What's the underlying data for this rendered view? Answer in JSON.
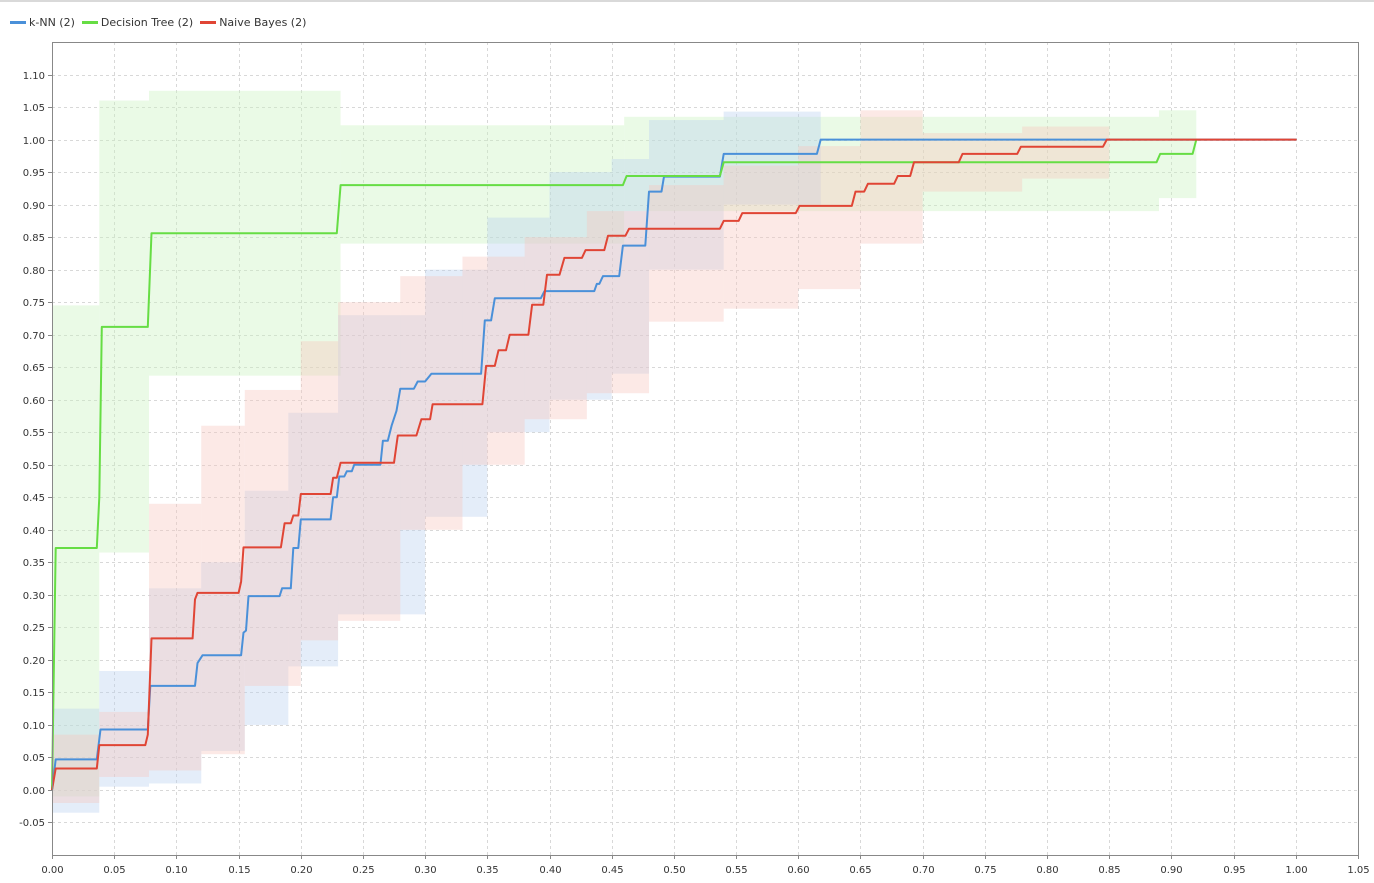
{
  "chart_data": {
    "type": "line",
    "title": "",
    "xlabel": "",
    "ylabel": "",
    "xlim": [
      0,
      1.05
    ],
    "ylim": [
      -0.1,
      1.15
    ],
    "grid": true,
    "legend_position": "top-left",
    "x_ticks": [
      "0.00",
      "0.05",
      "0.10",
      "0.15",
      "0.20",
      "0.25",
      "0.30",
      "0.35",
      "0.40",
      "0.45",
      "0.50",
      "0.55",
      "0.60",
      "0.65",
      "0.70",
      "0.75",
      "0.80",
      "0.85",
      "0.90",
      "0.95",
      "1.00",
      "1.05"
    ],
    "y_ticks": [
      "-0.05",
      "0.00",
      "0.05",
      "0.10",
      "0.15",
      "0.20",
      "0.25",
      "0.30",
      "0.35",
      "0.40",
      "0.45",
      "0.50",
      "0.55",
      "0.60",
      "0.65",
      "0.70",
      "0.75",
      "0.80",
      "0.85",
      "0.90",
      "0.95",
      "1.00",
      "1.05",
      "1.10"
    ],
    "series": [
      {
        "name": "k-NN (2)",
        "color": "#4a90d9",
        "band_color": "#b8d0f0",
        "x": [
          0,
          0.003,
          0.036,
          0.039,
          0.077,
          0.079,
          0.115,
          0.117,
          0.121,
          0.152,
          0.154,
          0.156,
          0.158,
          0.183,
          0.185,
          0.192,
          0.194,
          0.198,
          0.2,
          0.224,
          0.226,
          0.229,
          0.231,
          0.235,
          0.237,
          0.241,
          0.243,
          0.252,
          0.255,
          0.264,
          0.266,
          0.27,
          0.273,
          0.277,
          0.28,
          0.291,
          0.294,
          0.3,
          0.305,
          0.308,
          0.311,
          0.333,
          0.336,
          0.345,
          0.348,
          0.353,
          0.356,
          0.393,
          0.396,
          0.425,
          0.436,
          0.438,
          0.44,
          0.443,
          0.456,
          0.459,
          0.477,
          0.48,
          0.49,
          0.492,
          0.498,
          0.5,
          0.537,
          0.54,
          0.615,
          0.618,
          1.0
        ],
        "y": [
          0,
          0.047,
          0.047,
          0.093,
          0.093,
          0.16,
          0.16,
          0.195,
          0.207,
          0.207,
          0.242,
          0.245,
          0.298,
          0.298,
          0.31,
          0.31,
          0.372,
          0.372,
          0.416,
          0.416,
          0.45,
          0.45,
          0.482,
          0.482,
          0.49,
          0.49,
          0.5,
          0.5,
          0.5,
          0.5,
          0.537,
          0.537,
          0.56,
          0.583,
          0.617,
          0.617,
          0.628,
          0.628,
          0.64,
          0.64,
          0.64,
          0.64,
          0.64,
          0.64,
          0.722,
          0.722,
          0.756,
          0.756,
          0.767,
          0.767,
          0.767,
          0.778,
          0.778,
          0.79,
          0.79,
          0.837,
          0.837,
          0.92,
          0.92,
          0.943,
          0.943,
          0.943,
          0.943,
          0.978,
          0.978,
          1.0,
          1.0
        ]
      },
      {
        "name": "Decision Tree (2)",
        "color": "#66dd44",
        "band_color": "#c9f2bd",
        "x": [
          0,
          0.003,
          0.036,
          0.038,
          0.04,
          0.077,
          0.08,
          0.229,
          0.232,
          0.459,
          0.462,
          0.537,
          0.54,
          0.888,
          0.891,
          0.917,
          0.92
        ],
        "y": [
          0,
          0.372,
          0.372,
          0.45,
          0.712,
          0.712,
          0.856,
          0.856,
          0.93,
          0.93,
          0.944,
          0.944,
          0.965,
          0.965,
          0.978,
          0.978,
          1.0
        ]
      },
      {
        "name": "Naive Bayes (2)",
        "color": "#e04535",
        "band_color": "#f6c4bc",
        "x": [
          0,
          0.003,
          0.036,
          0.038,
          0.075,
          0.077,
          0.08,
          0.113,
          0.115,
          0.117,
          0.15,
          0.152,
          0.154,
          0.184,
          0.187,
          0.192,
          0.194,
          0.198,
          0.2,
          0.224,
          0.226,
          0.229,
          0.232,
          0.259,
          0.262,
          0.275,
          0.278,
          0.293,
          0.297,
          0.304,
          0.306,
          0.346,
          0.349,
          0.356,
          0.359,
          0.365,
          0.368,
          0.383,
          0.386,
          0.395,
          0.398,
          0.408,
          0.412,
          0.426,
          0.429,
          0.444,
          0.447,
          0.461,
          0.464,
          0.481,
          0.484,
          0.537,
          0.54,
          0.552,
          0.555,
          0.598,
          0.601,
          0.643,
          0.646,
          0.653,
          0.656,
          0.677,
          0.68,
          0.69,
          0.693,
          0.729,
          0.732,
          0.776,
          0.779,
          0.845,
          0.848,
          1.0
        ],
        "y": [
          0,
          0.033,
          0.033,
          0.069,
          0.069,
          0.085,
          0.233,
          0.233,
          0.293,
          0.303,
          0.303,
          0.32,
          0.373,
          0.373,
          0.41,
          0.41,
          0.422,
          0.422,
          0.455,
          0.455,
          0.48,
          0.48,
          0.503,
          0.503,
          0.503,
          0.503,
          0.545,
          0.545,
          0.57,
          0.57,
          0.593,
          0.593,
          0.652,
          0.652,
          0.676,
          0.676,
          0.7,
          0.7,
          0.746,
          0.746,
          0.792,
          0.792,
          0.818,
          0.818,
          0.83,
          0.83,
          0.852,
          0.852,
          0.863,
          0.863,
          0.863,
          0.863,
          0.875,
          0.875,
          0.887,
          0.887,
          0.898,
          0.898,
          0.92,
          0.92,
          0.932,
          0.932,
          0.944,
          0.944,
          0.965,
          0.965,
          0.978,
          0.978,
          0.989,
          0.989,
          1.0,
          1.0
        ]
      }
    ],
    "bands": [
      {
        "series": "Decision Tree (2)",
        "steps": [
          {
            "x0": 0.0,
            "x1": 0.038,
            "lo": -0.01,
            "hi": 0.745
          },
          {
            "x0": 0.038,
            "x1": 0.078,
            "lo": 0.365,
            "hi": 1.06
          },
          {
            "x0": 0.078,
            "x1": 0.232,
            "lo": 0.637,
            "hi": 1.075
          },
          {
            "x0": 0.232,
            "x1": 0.46,
            "lo": 0.84,
            "hi": 1.022
          },
          {
            "x0": 0.46,
            "x1": 0.89,
            "lo": 0.89,
            "hi": 1.035
          },
          {
            "x0": 0.89,
            "x1": 0.92,
            "lo": 0.91,
            "hi": 1.045
          }
        ]
      },
      {
        "series": "k-NN (2)",
        "steps": [
          {
            "x0": 0.0,
            "x1": 0.038,
            "lo": -0.035,
            "hi": 0.125
          },
          {
            "x0": 0.038,
            "x1": 0.078,
            "lo": 0.005,
            "hi": 0.183
          },
          {
            "x0": 0.078,
            "x1": 0.12,
            "lo": 0.01,
            "hi": 0.31
          },
          {
            "x0": 0.12,
            "x1": 0.155,
            "lo": 0.06,
            "hi": 0.35
          },
          {
            "x0": 0.155,
            "x1": 0.19,
            "lo": 0.1,
            "hi": 0.46
          },
          {
            "x0": 0.19,
            "x1": 0.23,
            "lo": 0.19,
            "hi": 0.58
          },
          {
            "x0": 0.23,
            "x1": 0.3,
            "lo": 0.27,
            "hi": 0.73
          },
          {
            "x0": 0.3,
            "x1": 0.35,
            "lo": 0.42,
            "hi": 0.8
          },
          {
            "x0": 0.35,
            "x1": 0.4,
            "lo": 0.55,
            "hi": 0.88
          },
          {
            "x0": 0.4,
            "x1": 0.45,
            "lo": 0.6,
            "hi": 0.95
          },
          {
            "x0": 0.45,
            "x1": 0.48,
            "lo": 0.64,
            "hi": 0.97
          },
          {
            "x0": 0.48,
            "x1": 0.54,
            "lo": 0.8,
            "hi": 1.03
          },
          {
            "x0": 0.54,
            "x1": 0.618,
            "lo": 0.9,
            "hi": 1.043
          }
        ]
      },
      {
        "series": "Naive Bayes (2)",
        "steps": [
          {
            "x0": 0.0,
            "x1": 0.038,
            "lo": -0.02,
            "hi": 0.085
          },
          {
            "x0": 0.038,
            "x1": 0.078,
            "lo": 0.02,
            "hi": 0.12
          },
          {
            "x0": 0.078,
            "x1": 0.12,
            "lo": 0.03,
            "hi": 0.44
          },
          {
            "x0": 0.12,
            "x1": 0.155,
            "lo": 0.055,
            "hi": 0.56
          },
          {
            "x0": 0.155,
            "x1": 0.2,
            "lo": 0.16,
            "hi": 0.615
          },
          {
            "x0": 0.2,
            "x1": 0.23,
            "lo": 0.23,
            "hi": 0.69
          },
          {
            "x0": 0.23,
            "x1": 0.28,
            "lo": 0.26,
            "hi": 0.75
          },
          {
            "x0": 0.28,
            "x1": 0.33,
            "lo": 0.4,
            "hi": 0.79
          },
          {
            "x0": 0.33,
            "x1": 0.38,
            "lo": 0.5,
            "hi": 0.82
          },
          {
            "x0": 0.38,
            "x1": 0.43,
            "lo": 0.57,
            "hi": 0.85
          },
          {
            "x0": 0.43,
            "x1": 0.48,
            "lo": 0.61,
            "hi": 0.89
          },
          {
            "x0": 0.48,
            "x1": 0.54,
            "lo": 0.72,
            "hi": 0.93
          },
          {
            "x0": 0.54,
            "x1": 0.6,
            "lo": 0.74,
            "hi": 0.96
          },
          {
            "x0": 0.6,
            "x1": 0.65,
            "lo": 0.77,
            "hi": 0.99
          },
          {
            "x0": 0.65,
            "x1": 0.7,
            "lo": 0.84,
            "hi": 1.045
          },
          {
            "x0": 0.7,
            "x1": 0.78,
            "lo": 0.92,
            "hi": 1.01
          },
          {
            "x0": 0.78,
            "x1": 0.85,
            "lo": 0.94,
            "hi": 1.02
          }
        ]
      }
    ]
  }
}
